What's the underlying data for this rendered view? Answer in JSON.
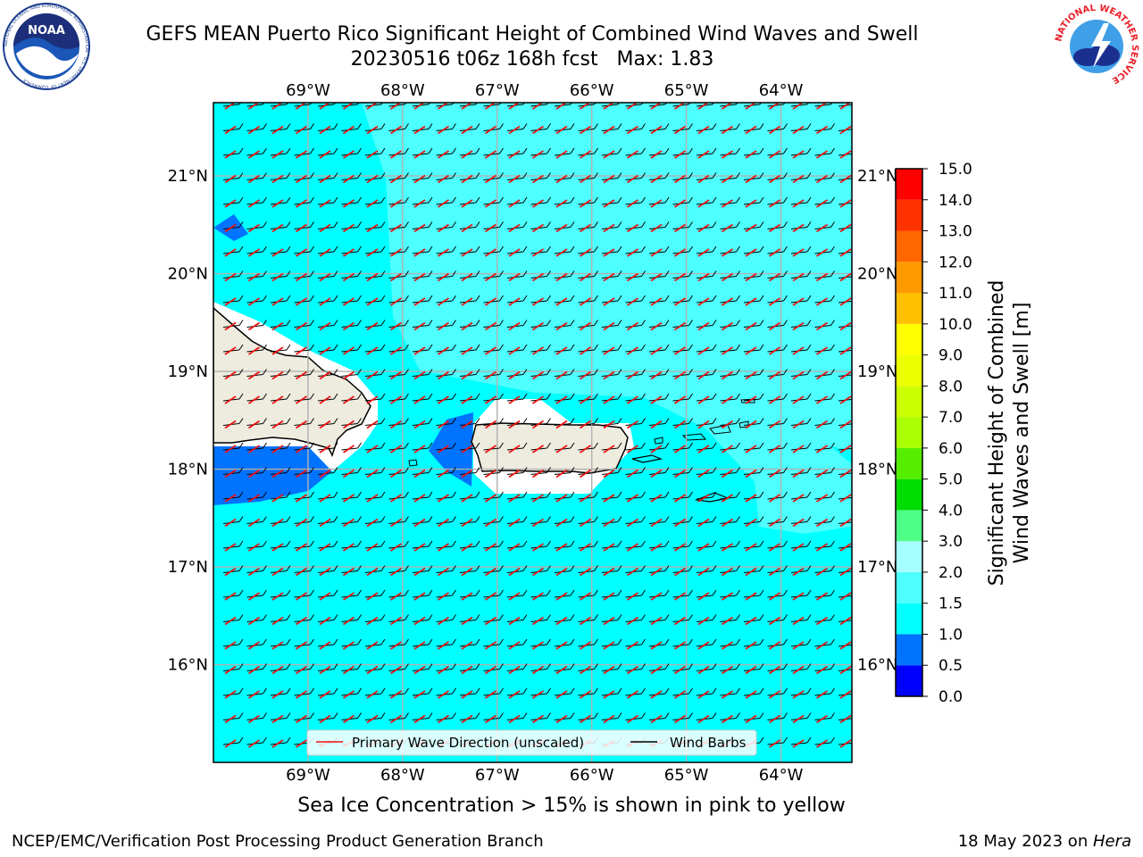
{
  "header": {
    "title_line1": "GEFS MEAN Puerto Rico Significant Height of Combined Wind Waves and Swell",
    "title_line2": "20230516 t06z 168h fcst   Max: 1.83"
  },
  "logos": {
    "left": {
      "name": "noaa-logo",
      "text": "NOAA",
      "ring_text": "NATIONAL OCEANIC AND ATMOSPHERIC ADMINISTRATION · U.S. DEPARTMENT OF COMMERCE"
    },
    "right": {
      "name": "nws-logo",
      "ring_text": "NATIONAL WEATHER SERVICE"
    }
  },
  "note": "Sea Ice Concentration > 15% is shown in pink to yellow",
  "footer": {
    "left": "NCEP/EMC/Verification Post Processing Product Generation Branch",
    "right_date": "18 May 2023 on ",
    "right_host": "Hera"
  },
  "colors": {
    "land": "#eeecdf",
    "grid": "#b0b0b0",
    "wave_arrow": "#ee1111",
    "wind_barb": "#000000"
  },
  "chart_data": {
    "type": "heatmap",
    "map": {
      "lon_range": [
        -70.0,
        -63.25
      ],
      "lat_range": [
        15.0,
        21.75
      ],
      "lon_ticks": [
        "69°W",
        "68°W",
        "67°W",
        "66°W",
        "65°W",
        "64°W"
      ],
      "lat_ticks": [
        "16°N",
        "17°N",
        "18°N",
        "19°N",
        "20°N",
        "21°N"
      ],
      "grid": true
    },
    "field": {
      "dominant_band": "1.0–1.5",
      "higher_band_regions": "1.5–2.0 north and east of Puerto Rico",
      "lower_band_regions": "0.5–1.0 near western Puerto Rico and southern Hispaniola",
      "max": 1.83
    },
    "legend": {
      "position": "bottom-center",
      "items": [
        "Primary Wave Direction (unscaled)",
        "Wind Barbs"
      ]
    },
    "colorbar": {
      "label_line1": "Significant Height of Combined",
      "label_line2": "Wind Waves and Swell [m]",
      "ticks": [
        "0.0",
        "0.5",
        "1.0",
        "1.5",
        "2.0",
        "3.0",
        "4.0",
        "5.0",
        "6.0",
        "7.0",
        "8.0",
        "9.0",
        "10.0",
        "11.0",
        "12.0",
        "13.0",
        "14.0",
        "15.0"
      ],
      "bands": [
        {
          "from": 0.0,
          "to": 0.5,
          "color": "#0000ff"
        },
        {
          "from": 0.5,
          "to": 1.0,
          "color": "#0073ff"
        },
        {
          "from": 1.0,
          "to": 1.5,
          "color": "#00ffff"
        },
        {
          "from": 1.5,
          "to": 2.0,
          "color": "#4dffff"
        },
        {
          "from": 2.0,
          "to": 3.0,
          "color": "#a6ffff"
        },
        {
          "from": 3.0,
          "to": 4.0,
          "color": "#4dff86"
        },
        {
          "from": 4.0,
          "to": 5.0,
          "color": "#00dd00"
        },
        {
          "from": 5.0,
          "to": 6.0,
          "color": "#55ee00"
        },
        {
          "from": 6.0,
          "to": 7.0,
          "color": "#aaff00"
        },
        {
          "from": 7.0,
          "to": 8.0,
          "color": "#ccff00"
        },
        {
          "from": 8.0,
          "to": 9.0,
          "color": "#eeff00"
        },
        {
          "from": 9.0,
          "to": 10.0,
          "color": "#ffff00"
        },
        {
          "from": 10.0,
          "to": 11.0,
          "color": "#ffc000"
        },
        {
          "from": 11.0,
          "to": 12.0,
          "color": "#ff9900"
        },
        {
          "from": 12.0,
          "to": 13.0,
          "color": "#ff6600"
        },
        {
          "from": 13.0,
          "to": 14.0,
          "color": "#ff3300"
        },
        {
          "from": 14.0,
          "to": 15.0,
          "color": "#ff0000"
        }
      ]
    }
  }
}
